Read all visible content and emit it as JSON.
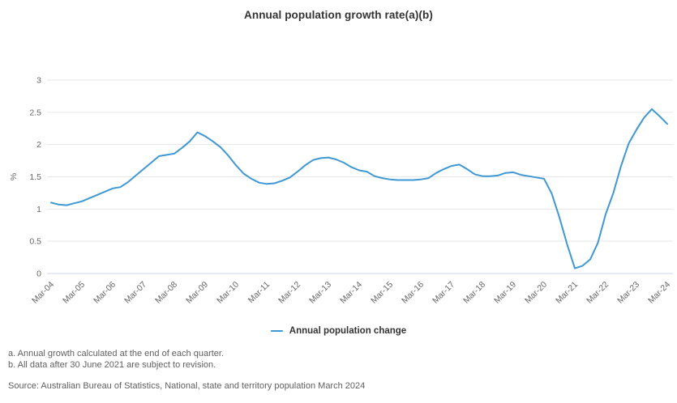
{
  "title": "Annual population growth rate(a)(b)",
  "legend": {
    "label": "Annual population change"
  },
  "footnotes": [
    "a. Annual growth calculated at the end of each quarter.",
    "b. All data after 30 June 2021 are subject to revision."
  ],
  "source": "Source: Australian Bureau of Statistics, National, state and territory population March 2024",
  "colors": {
    "line": "#3f98d4",
    "grid": "#e6e6e6",
    "axis_line": "#ccd6eb",
    "tick_label": "#666666",
    "title": "#333333",
    "note": "#606060"
  },
  "chart_data": {
    "type": "line",
    "title": "Annual population growth rate(a)(b)",
    "xlabel": "",
    "ylabel": "%",
    "ylim": [
      0,
      3
    ],
    "yticks": [
      0,
      0.5,
      1,
      1.5,
      2,
      2.5,
      3
    ],
    "grid": "horizontal",
    "legend_position": "bottom",
    "xtick_labels": [
      "Mar-04",
      "Mar-05",
      "Mar-06",
      "Mar-07",
      "Mar-08",
      "Mar-09",
      "Mar-10",
      "Mar-11",
      "Mar-12",
      "Mar-13",
      "Mar-14",
      "Mar-15",
      "Mar-16",
      "Mar-17",
      "Mar-18",
      "Mar-19",
      "Mar-20",
      "Mar-21",
      "Mar-22",
      "Mar-23",
      "Mar-24"
    ],
    "xticks_every_n_points": 4,
    "series": [
      {
        "name": "Annual population change",
        "color": "#3f98d4",
        "x": [
          "Mar-04",
          "Jun-04",
          "Sep-04",
          "Dec-04",
          "Mar-05",
          "Jun-05",
          "Sep-05",
          "Dec-05",
          "Mar-06",
          "Jun-06",
          "Sep-06",
          "Dec-06",
          "Mar-07",
          "Jun-07",
          "Sep-07",
          "Dec-07",
          "Mar-08",
          "Jun-08",
          "Sep-08",
          "Dec-08",
          "Mar-09",
          "Jun-09",
          "Sep-09",
          "Dec-09",
          "Mar-10",
          "Jun-10",
          "Sep-10",
          "Dec-10",
          "Mar-11",
          "Jun-11",
          "Sep-11",
          "Dec-11",
          "Mar-12",
          "Jun-12",
          "Sep-12",
          "Dec-12",
          "Mar-13",
          "Jun-13",
          "Sep-13",
          "Dec-13",
          "Mar-14",
          "Jun-14",
          "Sep-14",
          "Dec-14",
          "Mar-15",
          "Jun-15",
          "Sep-15",
          "Dec-15",
          "Mar-16",
          "Jun-16",
          "Sep-16",
          "Dec-16",
          "Mar-17",
          "Jun-17",
          "Sep-17",
          "Dec-17",
          "Mar-18",
          "Jun-18",
          "Sep-18",
          "Dec-18",
          "Mar-19",
          "Jun-19",
          "Sep-19",
          "Dec-19",
          "Mar-20",
          "Jun-20",
          "Sep-20",
          "Dec-20",
          "Mar-21",
          "Jun-21",
          "Sep-21",
          "Dec-21",
          "Mar-22",
          "Jun-22",
          "Sep-22",
          "Dec-22",
          "Mar-23",
          "Jun-23",
          "Sep-23",
          "Dec-23",
          "Mar-24"
        ],
        "values": [
          1.1,
          1.07,
          1.06,
          1.09,
          1.12,
          1.17,
          1.22,
          1.27,
          1.32,
          1.34,
          1.42,
          1.52,
          1.62,
          1.72,
          1.82,
          1.84,
          1.86,
          1.95,
          2.05,
          2.19,
          2.13,
          2.05,
          1.96,
          1.83,
          1.68,
          1.55,
          1.47,
          1.41,
          1.39,
          1.4,
          1.44,
          1.49,
          1.58,
          1.68,
          1.76,
          1.79,
          1.8,
          1.77,
          1.72,
          1.65,
          1.6,
          1.58,
          1.51,
          1.48,
          1.46,
          1.45,
          1.45,
          1.45,
          1.46,
          1.48,
          1.56,
          1.62,
          1.67,
          1.69,
          1.62,
          1.54,
          1.51,
          1.51,
          1.52,
          1.56,
          1.57,
          1.53,
          1.51,
          1.49,
          1.47,
          1.24,
          0.87,
          0.45,
          0.08,
          0.12,
          0.22,
          0.48,
          0.92,
          1.25,
          1.67,
          2.02,
          2.23,
          2.42,
          2.55,
          2.44,
          2.32
        ]
      }
    ]
  }
}
